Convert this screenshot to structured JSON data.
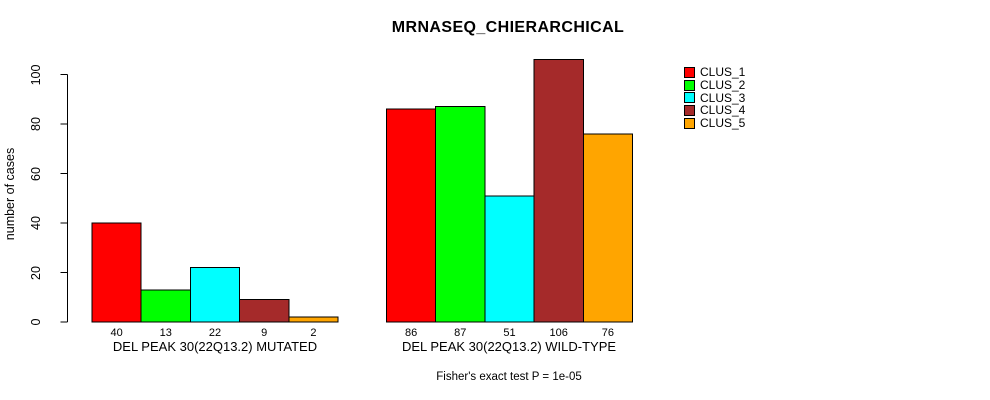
{
  "chart_data": {
    "type": "bar",
    "title": "MRNASEQ_CHIERARCHICAL",
    "ylabel": "number of cases",
    "xlabel": "",
    "yticks": [
      0,
      20,
      40,
      60,
      80,
      100
    ],
    "ylim": [
      0,
      107
    ],
    "grid": false,
    "legend_position": "right-of-plot-top",
    "categories": [
      "CLUS_1",
      "CLUS_2",
      "CLUS_3",
      "CLUS_4",
      "CLUS_5"
    ],
    "series_colors": [
      "#ff0000",
      "#00ff00",
      "#00ffff",
      "#a52a2a",
      "#ffa500"
    ],
    "groups": [
      {
        "label": "DEL PEAK 30(22Q13.2) MUTATED",
        "values": [
          40,
          13,
          22,
          9,
          2
        ]
      },
      {
        "label": "DEL PEAK 30(22Q13.2) WILD-TYPE",
        "values": [
          86,
          87,
          51,
          106,
          76
        ]
      }
    ],
    "footer": "Fisher's exact test P = 1e-05"
  }
}
